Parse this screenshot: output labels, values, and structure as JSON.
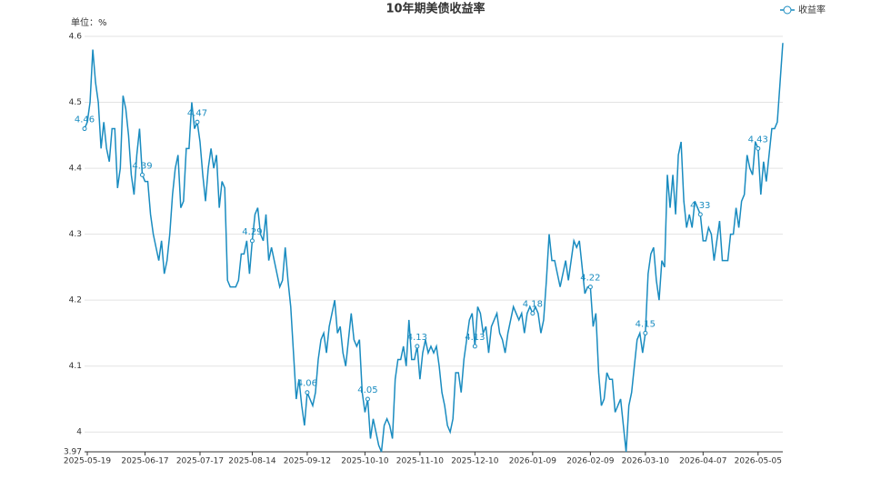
{
  "chart_data": {
    "type": "line",
    "title": "10年期美债收益率",
    "y_unit_label": "单位：%",
    "categories": [
      null,
      "2025-05-19",
      null,
      null,
      null,
      null,
      null,
      null,
      null,
      null,
      null,
      null,
      null,
      null,
      null,
      null,
      null,
      null,
      null,
      null,
      null,
      null,
      "2025-06-17",
      null,
      null,
      null,
      null,
      null,
      null,
      null,
      null,
      null,
      null,
      null,
      null,
      null,
      null,
      null,
      null,
      null,
      null,
      null,
      "2025-07-17",
      null,
      null,
      null,
      null,
      null,
      null,
      null,
      null,
      null,
      null,
      null,
      null,
      null,
      null,
      null,
      null,
      null,
      null,
      "2025-08-14",
      null,
      null,
      null,
      null,
      null,
      null,
      null,
      null,
      null,
      null,
      null,
      null,
      null,
      null,
      null,
      null,
      null,
      null,
      null,
      "2025-09-12",
      null,
      null,
      null,
      null,
      null,
      null,
      null,
      null,
      null,
      null,
      null,
      null,
      null,
      null,
      null,
      null,
      null,
      null,
      null,
      null,
      "2025-10-10",
      null,
      null,
      null,
      null,
      null,
      null,
      null,
      null,
      null,
      null,
      null,
      null,
      null,
      null,
      null,
      null,
      null,
      null,
      null,
      "2025-11-10",
      null,
      null,
      null,
      null,
      null,
      null,
      null,
      null,
      null,
      null,
      null,
      null,
      null,
      null,
      null,
      null,
      null,
      null,
      null,
      "2025-12-10",
      null,
      null,
      null,
      null,
      null,
      null,
      null,
      null,
      null,
      null,
      null,
      null,
      null,
      null,
      null,
      null,
      null,
      null,
      null,
      null,
      "2026-01-09",
      null,
      null,
      null,
      null,
      null,
      null,
      null,
      null,
      null,
      null,
      null,
      null,
      null,
      null,
      null,
      null,
      null,
      null,
      null,
      null,
      "2026-02-09",
      null,
      null,
      null,
      null,
      null,
      null,
      null,
      null,
      null,
      null,
      null,
      null,
      null,
      null,
      null,
      null,
      null,
      null,
      null,
      "2026-03-10",
      null,
      null,
      null,
      null,
      null,
      null,
      null,
      null,
      null,
      null,
      null,
      null,
      null,
      null,
      null,
      null,
      null,
      null,
      null,
      null,
      "2026-04-07",
      null,
      null,
      null,
      null,
      null,
      null,
      null,
      null,
      null,
      null,
      null,
      null,
      null,
      null,
      null,
      null,
      null,
      null,
      null,
      "2026-05-05",
      null,
      null,
      null,
      null,
      null,
      null,
      null,
      null,
      null
    ],
    "series": [
      {
        "name": "收益率",
        "color": "#1a8cc0",
        "values": [
          4.46,
          4.47,
          4.5,
          4.58,
          4.53,
          4.5,
          4.43,
          4.47,
          4.43,
          4.41,
          4.46,
          4.46,
          4.37,
          4.4,
          4.51,
          4.49,
          4.45,
          4.39,
          4.36,
          4.42,
          4.46,
          4.39,
          4.38,
          4.38,
          4.33,
          4.3,
          4.28,
          4.26,
          4.29,
          4.24,
          4.26,
          4.3,
          4.36,
          4.4,
          4.42,
          4.34,
          4.35,
          4.43,
          4.43,
          4.5,
          4.46,
          4.47,
          4.44,
          4.39,
          4.35,
          4.4,
          4.43,
          4.4,
          4.42,
          4.34,
          4.38,
          4.37,
          4.23,
          4.22,
          4.22,
          4.22,
          4.23,
          4.27,
          4.27,
          4.29,
          4.24,
          4.29,
          4.33,
          4.34,
          4.3,
          4.29,
          4.33,
          4.26,
          4.28,
          4.26,
          4.24,
          4.22,
          4.23,
          4.28,
          4.23,
          4.19,
          4.12,
          4.05,
          4.08,
          4.04,
          4.01,
          4.06,
          4.05,
          4.04,
          4.06,
          4.11,
          4.14,
          4.15,
          4.12,
          4.16,
          4.18,
          4.2,
          4.15,
          4.16,
          4.12,
          4.1,
          4.14,
          4.18,
          4.14,
          4.13,
          4.14,
          4.06,
          4.03,
          4.05,
          3.99,
          4.02,
          4.0,
          3.98,
          3.97,
          4.01,
          4.02,
          4.01,
          3.99,
          4.08,
          4.11,
          4.11,
          4.13,
          4.1,
          4.17,
          4.11,
          4.11,
          4.13,
          4.08,
          4.12,
          4.14,
          4.12,
          4.13,
          4.12,
          4.13,
          4.1,
          4.06,
          4.04,
          4.01,
          4.0,
          4.02,
          4.09,
          4.09,
          4.06,
          4.11,
          4.14,
          4.17,
          4.18,
          4.13,
          4.19,
          4.18,
          4.15,
          4.16,
          4.12,
          4.16,
          4.17,
          4.18,
          4.15,
          4.14,
          4.12,
          4.15,
          4.17,
          4.19,
          4.18,
          4.17,
          4.18,
          4.15,
          4.18,
          4.19,
          4.18,
          4.19,
          4.18,
          4.15,
          4.17,
          4.23,
          4.3,
          4.26,
          4.26,
          4.24,
          4.22,
          4.24,
          4.26,
          4.23,
          4.26,
          4.29,
          4.28,
          4.29,
          4.25,
          4.21,
          4.22,
          4.22,
          4.16,
          4.18,
          4.09,
          4.04,
          4.05,
          4.09,
          4.08,
          4.08,
          4.03,
          4.04,
          4.05,
          4.01,
          3.97,
          4.04,
          4.06,
          4.1,
          4.14,
          4.15,
          4.12,
          4.15,
          4.24,
          4.27,
          4.28,
          4.23,
          4.2,
          4.26,
          4.25,
          4.39,
          4.34,
          4.39,
          4.33,
          4.42,
          4.44,
          4.35,
          4.31,
          4.33,
          4.31,
          4.35,
          4.34,
          4.33,
          4.29,
          4.29,
          4.31,
          4.3,
          4.26,
          4.29,
          4.32,
          4.26,
          4.26,
          4.26,
          4.3,
          4.3,
          4.34,
          4.31,
          4.35,
          4.36,
          4.42,
          4.4,
          4.39,
          4.44,
          4.43,
          4.36,
          4.41,
          4.38,
          4.42,
          4.46,
          4.46,
          4.47,
          4.53,
          4.59
        ],
        "value_labels": [
          "4.46",
          null,
          null,
          null,
          null,
          null,
          null,
          null,
          null,
          null,
          null,
          null,
          null,
          null,
          null,
          null,
          null,
          null,
          null,
          null,
          null,
          "4.39",
          null,
          null,
          null,
          null,
          null,
          null,
          null,
          null,
          null,
          null,
          null,
          null,
          null,
          null,
          null,
          null,
          null,
          null,
          null,
          "4.47",
          null,
          null,
          null,
          null,
          null,
          null,
          null,
          null,
          null,
          null,
          null,
          null,
          null,
          null,
          null,
          null,
          null,
          null,
          null,
          "4.29",
          null,
          null,
          null,
          null,
          null,
          null,
          null,
          null,
          null,
          null,
          null,
          null,
          null,
          null,
          null,
          null,
          null,
          null,
          null,
          "4.06",
          null,
          null,
          null,
          null,
          null,
          null,
          null,
          null,
          null,
          null,
          null,
          null,
          null,
          null,
          null,
          null,
          null,
          null,
          null,
          null,
          null,
          "4.05",
          null,
          null,
          null,
          null,
          null,
          null,
          null,
          null,
          null,
          null,
          null,
          null,
          null,
          null,
          null,
          null,
          null,
          "4.13",
          null,
          null,
          null,
          null,
          null,
          null,
          null,
          null,
          null,
          null,
          null,
          null,
          null,
          null,
          null,
          null,
          null,
          null,
          null,
          null,
          "4.13",
          null,
          null,
          null,
          null,
          null,
          null,
          null,
          null,
          null,
          null,
          null,
          null,
          null,
          null,
          null,
          null,
          null,
          null,
          null,
          null,
          "4.18",
          null,
          null,
          null,
          null,
          null,
          null,
          null,
          null,
          null,
          null,
          null,
          null,
          null,
          null,
          null,
          null,
          null,
          null,
          null,
          null,
          "4.22",
          null,
          null,
          null,
          null,
          null,
          null,
          null,
          null,
          null,
          null,
          null,
          null,
          null,
          null,
          null,
          null,
          null,
          null,
          null,
          "4.15",
          null,
          null,
          null,
          null,
          null,
          null,
          null,
          null,
          null,
          null,
          null,
          null,
          null,
          null,
          null,
          null,
          null,
          null,
          null,
          "4.33",
          null,
          null,
          null,
          null,
          null,
          null,
          null,
          null,
          null,
          null,
          null,
          null,
          null,
          null,
          null,
          null,
          null,
          null,
          null,
          null,
          "4.43",
          null,
          null,
          null,
          null,
          null,
          null,
          null,
          null,
          null
        ]
      }
    ],
    "ylim": [
      3.97,
      4.6
    ],
    "yticks": [
      3.97,
      4,
      4.1,
      4.2,
      4.3,
      4.4,
      4.5,
      4.6
    ],
    "grid": true,
    "legend": "top-right"
  }
}
